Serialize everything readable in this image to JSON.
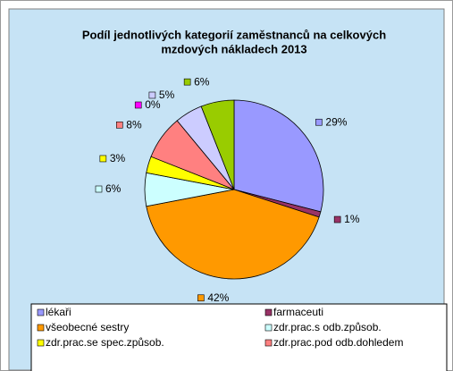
{
  "chart_data": {
    "type": "pie",
    "title_lines": [
      "Podíl jednotlivých kategorií zaměstnanců na celkových",
      "mzdových nákladech 2013"
    ],
    "categories": [
      "lékaři",
      "farmaceuti",
      "všeobecné sestry",
      "zdr.prac.s odb.způsob.",
      "zdr.prac.se spec.způsob.",
      "zdr.prac.pod odb.dohledem",
      null,
      null,
      null
    ],
    "values": [
      29,
      1,
      42,
      6,
      3,
      8,
      0,
      5,
      6
    ],
    "value_labels": [
      "29%",
      "1%",
      "42%",
      "6%",
      "3%",
      "8%",
      "0%",
      "5%",
      "6%"
    ],
    "colors": [
      "#9999ff",
      "#993366",
      "#ff9900",
      "#ccffff",
      "#ffff00",
      "#ff8080",
      "#ff00ff",
      "#ccccff",
      "#99cc00"
    ]
  }
}
